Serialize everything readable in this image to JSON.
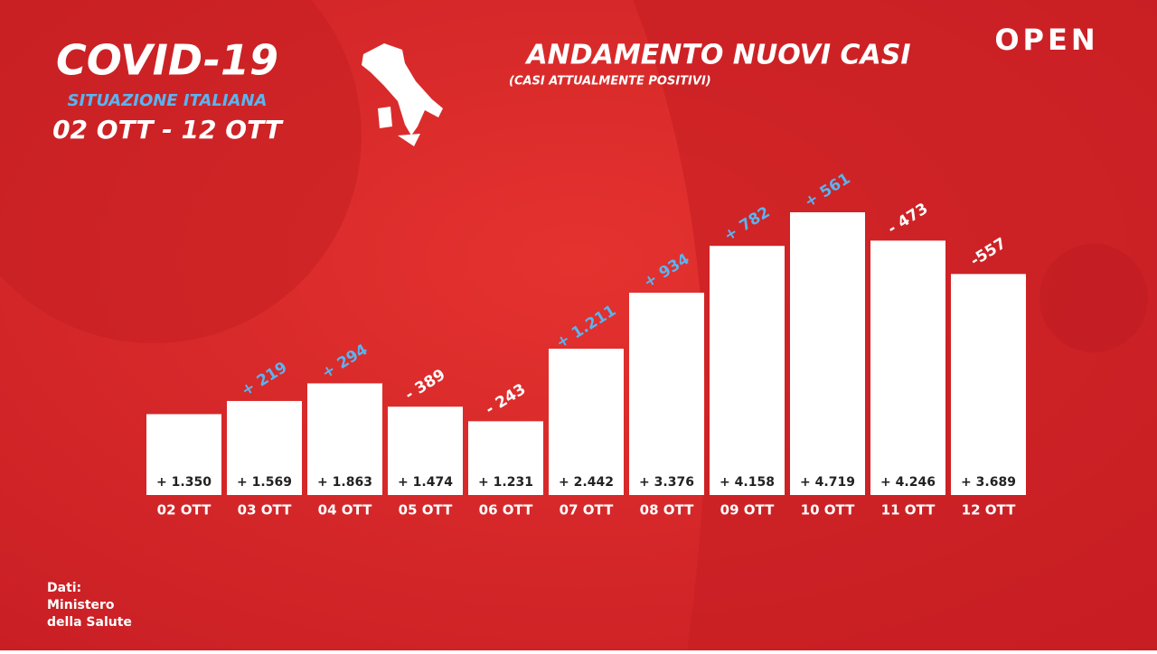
{
  "header": {
    "title": "COVID-19",
    "subtitle": "SITUAZIONE ITALIANA",
    "period": "02 OTT - 12 OTT"
  },
  "logo": "OPEN",
  "source": [
    "Dati:",
    "Ministero",
    "della Salute"
  ],
  "chart_data": {
    "type": "bar",
    "title": "ANDAMENTO NUOVI CASI",
    "subtitle": "(CASI ATTUALMENTE POSITIVI)",
    "categories": [
      "02 OTT",
      "03 OTT",
      "04 OTT",
      "05 OTT",
      "06 OTT",
      "07 OTT",
      "08 OTT",
      "09 OTT",
      "10 OTT",
      "11 OTT",
      "12 OTT"
    ],
    "values": [
      1350,
      1569,
      1863,
      1474,
      1231,
      2442,
      3376,
      4158,
      4719,
      4246,
      3689
    ],
    "value_labels": [
      "+ 1.350",
      "+ 1.569",
      "+ 1.863",
      "+ 1.474",
      "+ 1.231",
      "+ 2.442",
      "+ 3.376",
      "+ 4.158",
      "+ 4.719",
      "+ 4.246",
      "+ 3.689"
    ],
    "changes": {
      "values": [
        null,
        219,
        294,
        -389,
        -243,
        1211,
        934,
        782,
        561,
        -473,
        -557
      ],
      "value_labels": [
        null,
        "+ 219",
        "+ 294",
        "- 389",
        "- 243",
        "+ 1.211",
        "+ 934",
        "+ 782",
        "+ 561",
        "- 473",
        "-557"
      ]
    },
    "color": "#ffffff",
    "up_color": "#5ab4f0",
    "down_color": "#ffffff"
  }
}
